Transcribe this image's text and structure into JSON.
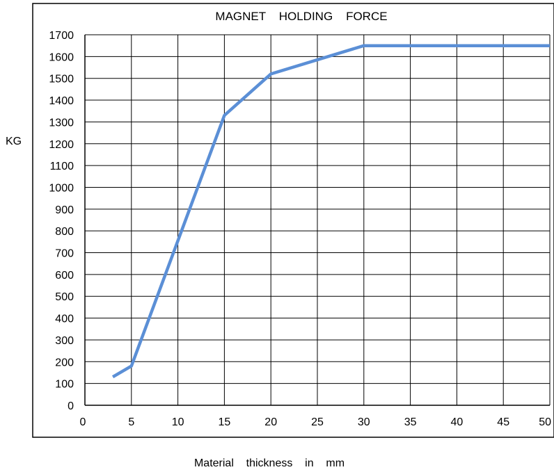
{
  "chart_data": {
    "type": "line",
    "title": "MAGNET    HOLDING    FORCE",
    "xlabel": "Material    thickness    in    mm",
    "ylabel": "KG",
    "xlim": [
      0,
      50
    ],
    "ylim": [
      0,
      1700
    ],
    "x_ticks": [
      0,
      5,
      10,
      15,
      20,
      25,
      30,
      35,
      40,
      45,
      50
    ],
    "y_ticks": [
      0,
      100,
      200,
      300,
      400,
      500,
      600,
      700,
      800,
      900,
      1000,
      1100,
      1200,
      1300,
      1400,
      1500,
      1600,
      1700
    ],
    "grid": true,
    "legend": "none",
    "series": [
      {
        "color": "#5b8fd6",
        "x": [
          3,
          5,
          15,
          20,
          30,
          50
        ],
        "y": [
          130,
          180,
          1330,
          1520,
          1650,
          1650
        ]
      }
    ],
    "colors": {
      "line": "#5b8fd6",
      "grid": "#000000",
      "frame": "#000000"
    }
  }
}
